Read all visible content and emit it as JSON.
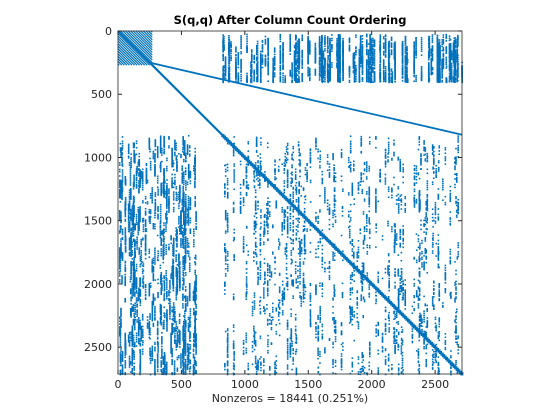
{
  "chart_data": {
    "type": "scatter",
    "plot_kind": "spy",
    "title": "S(q,q) After Column Count Ordering",
    "xlabel": "Nonzeros = 18441 (0.251%)",
    "ylabel": "",
    "matrix_size": 2712,
    "nonzeros": 18441,
    "density_percent": 0.251,
    "xlim": [
      0,
      2712
    ],
    "ylim": [
      2712,
      0
    ],
    "y_axis_reversed": true,
    "xticks": [
      0,
      500,
      1000,
      1500,
      2000,
      2500
    ],
    "yticks": [
      0,
      500,
      1000,
      1500,
      2000,
      2500
    ],
    "grid": false,
    "marker_color": "#0072BD",
    "series": [
      {
        "kind": "diagonal",
        "points": [
          [
            0,
            0
          ],
          [
            2712,
            2712
          ]
        ]
      },
      {
        "kind": "line",
        "points": [
          [
            250,
            250
          ],
          [
            2712,
            820
          ]
        ]
      },
      {
        "kind": "line",
        "points": [
          [
            820,
            820
          ],
          [
            2712,
            2712
          ]
        ]
      },
      {
        "kind": "line",
        "points": [
          [
            0,
            0
          ],
          [
            270,
            270
          ]
        ]
      },
      {
        "kind": "band",
        "columns": [
          820,
          2712
        ],
        "rows": [
          20,
          400
        ]
      },
      {
        "kind": "band",
        "columns": [
          0,
          620
        ],
        "rows": [
          820,
          2712
        ]
      },
      {
        "kind": "band",
        "columns": [
          820,
          2712
        ],
        "rows": [
          820,
          2712
        ]
      }
    ]
  }
}
